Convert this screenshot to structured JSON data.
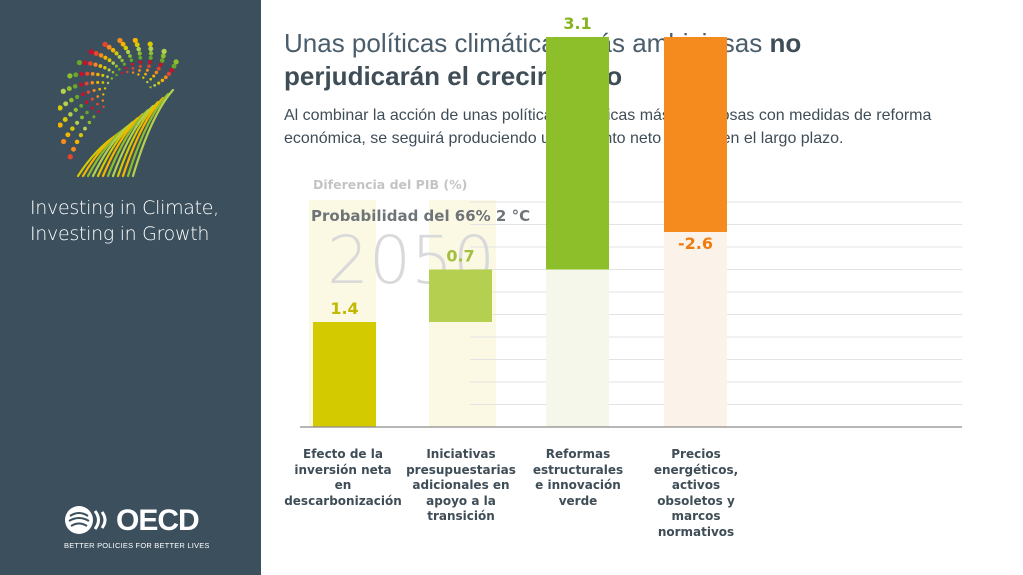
{
  "sidebar": {
    "tagline_line1": "Investing in Climate,",
    "tagline_line2": "Investing in Growth",
    "org_name": "OECD",
    "org_slogan": "BETTER POLICIES FOR BETTER LIVES"
  },
  "header": {
    "title_regular": "Unas políticas climáticas más ambiciosas",
    "title_bold_1": "no",
    "title_bold_2": "perjudicarán el crecimiento",
    "subtitle": "Al combinar la acción de unas políticas climáticas más ambiciosas con medidas de reforma económica, se seguirá produciendo un aumento neto del PIB en el largo plazo."
  },
  "chart_data": {
    "type": "bar",
    "subtype": "waterfall",
    "ylabel": "Diferencia del PIB (%)",
    "scenario": "Probabilidad del 66% 2 °C",
    "year": "2050",
    "categories": [
      "Efecto de la inversión neta en descarbonización",
      "Iniciativas presupuestarias adicionales en apoyo a la transición",
      "Reformas estructurales e innovación verde",
      "Precios energéticos, activos obsoletos y marcos normativos"
    ],
    "category_lines": [
      [
        "Efecto de la",
        "inversión neta",
        "en",
        "descarbonización"
      ],
      [
        "Iniciativas",
        "presupuestarias",
        "adicionales en",
        "apoyo a la",
        "transición"
      ],
      [
        "Reformas",
        "estructurales",
        "e innovación",
        "verde"
      ],
      [
        "Precios",
        "energéticos,",
        "activos",
        "obsoletos y",
        "marcos",
        "normativos"
      ]
    ],
    "values": [
      1.4,
      0.7,
      3.1,
      -2.6
    ],
    "value_labels": [
      "1.4",
      "0.7",
      "3.1",
      "-2.6"
    ],
    "colors": [
      "#d3cb00",
      "#b5cf50",
      "#8dbf2a",
      "#f58a1f"
    ],
    "label_colors": [
      "#c2b800",
      "#a3be40",
      "#86b320",
      "#f07c10"
    ],
    "grid": true
  }
}
